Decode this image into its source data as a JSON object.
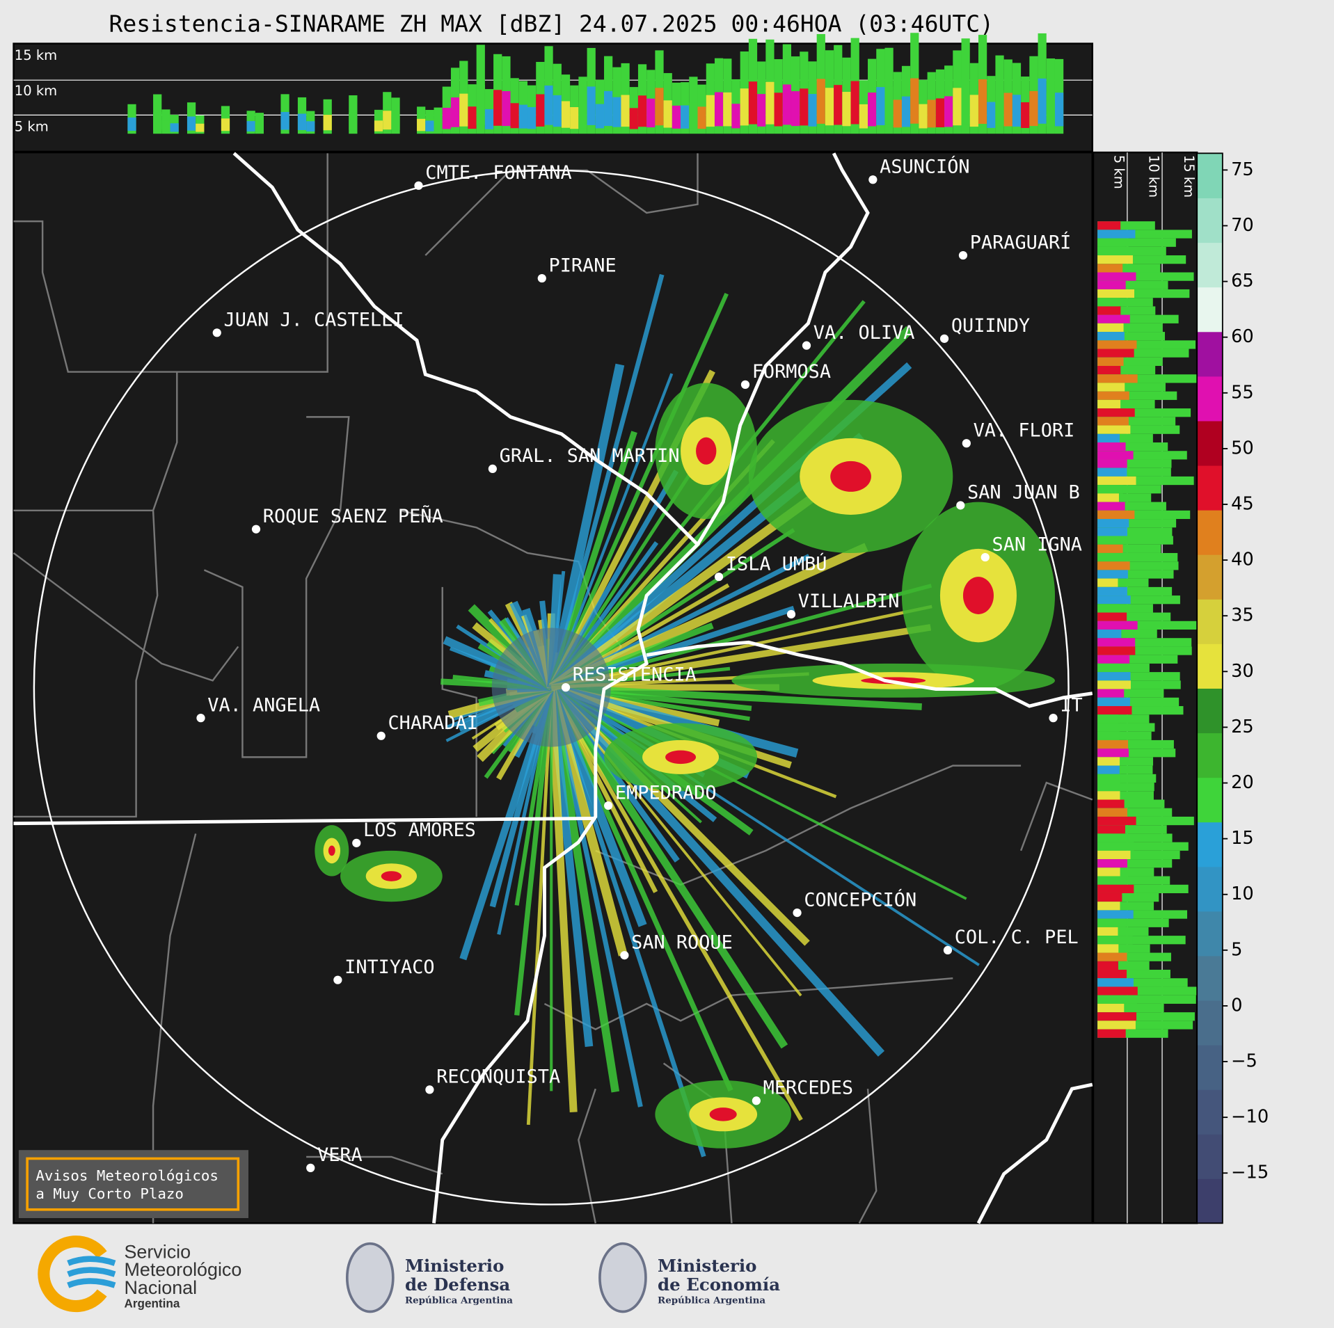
{
  "header": {
    "title": "Resistencia-SINARAME ZH MAX [dBZ] 24.07.2025 00:46HOA (03:46UTC)"
  },
  "cross_section_top": {
    "height_labels": [
      "15 km",
      "10 km",
      "5 km"
    ]
  },
  "cross_section_right": {
    "height_labels": [
      "5 km",
      "10 km",
      "15 km"
    ]
  },
  "map": {
    "cities": [
      "CMTE. FONTANA",
      "ASUNCIÓN",
      "PARAGUARÍ",
      "PIRANE",
      "JUAN J. CASTELLI",
      "VA. OLIVA",
      "QUIINDY",
      "FORMOSA",
      "VA. FLORI",
      "GRAL. SAN MARTIN",
      "SAN JUAN B",
      "ROQUE SAENZ PEÑA",
      "SAN IGNA",
      "ISLA UMBÚ",
      "VILLALBIN",
      "RESISTENCIA",
      "VA. ANGELA",
      "CHARADAI",
      "IT",
      "EMPEDRADO",
      "LOS AMORES",
      "CONCEPCIÓN",
      "SAN ROQUE",
      "COL. C. PEL",
      "INTIYACO",
      "RECONQUISTA",
      "MERCEDES",
      "VERA"
    ]
  },
  "colorbar": {
    "lim": [
      -19.5,
      76.5
    ],
    "ticks": [
      {
        "value": -15,
        "label": "−15"
      },
      {
        "value": -10,
        "label": "−10"
      },
      {
        "value": -5,
        "label": "−5"
      },
      0,
      5,
      10,
      15,
      20,
      25,
      30,
      35,
      40,
      45,
      50,
      55,
      60,
      65,
      70,
      75
    ],
    "colors": [
      "#3d3f6b",
      "#424c74",
      "#45567c",
      "#476284",
      "#4a6e8c",
      "#4a7a96",
      "#3f87aa",
      "#3294c4",
      "#2aa0d8",
      "#3fd43a",
      "#3db52f",
      "#2f922a",
      "#e6e23c",
      "#d6d03c",
      "#d4a02e",
      "#e0801e",
      "#e0102a",
      "#b00020",
      "#e010b0",
      "#a010a0",
      "#e8f6ee",
      "#c0ead8",
      "#a0e0c8",
      "#80d6b6"
    ]
  },
  "notice": {
    "lines": [
      "Avisos Meteorológicos",
      "a Muy Corto Plazo"
    ]
  },
  "footer": {
    "smn": {
      "lines": [
        "Servicio",
        "Meteorológico",
        "Nacional"
      ],
      "country": "Argentina"
    },
    "defensa": {
      "lines": [
        "Ministerio",
        "de Defensa"
      ],
      "sub": "República Argentina"
    },
    "economia": {
      "lines": [
        "Ministerio",
        "de Economía"
      ],
      "sub": "República Argentina"
    }
  }
}
